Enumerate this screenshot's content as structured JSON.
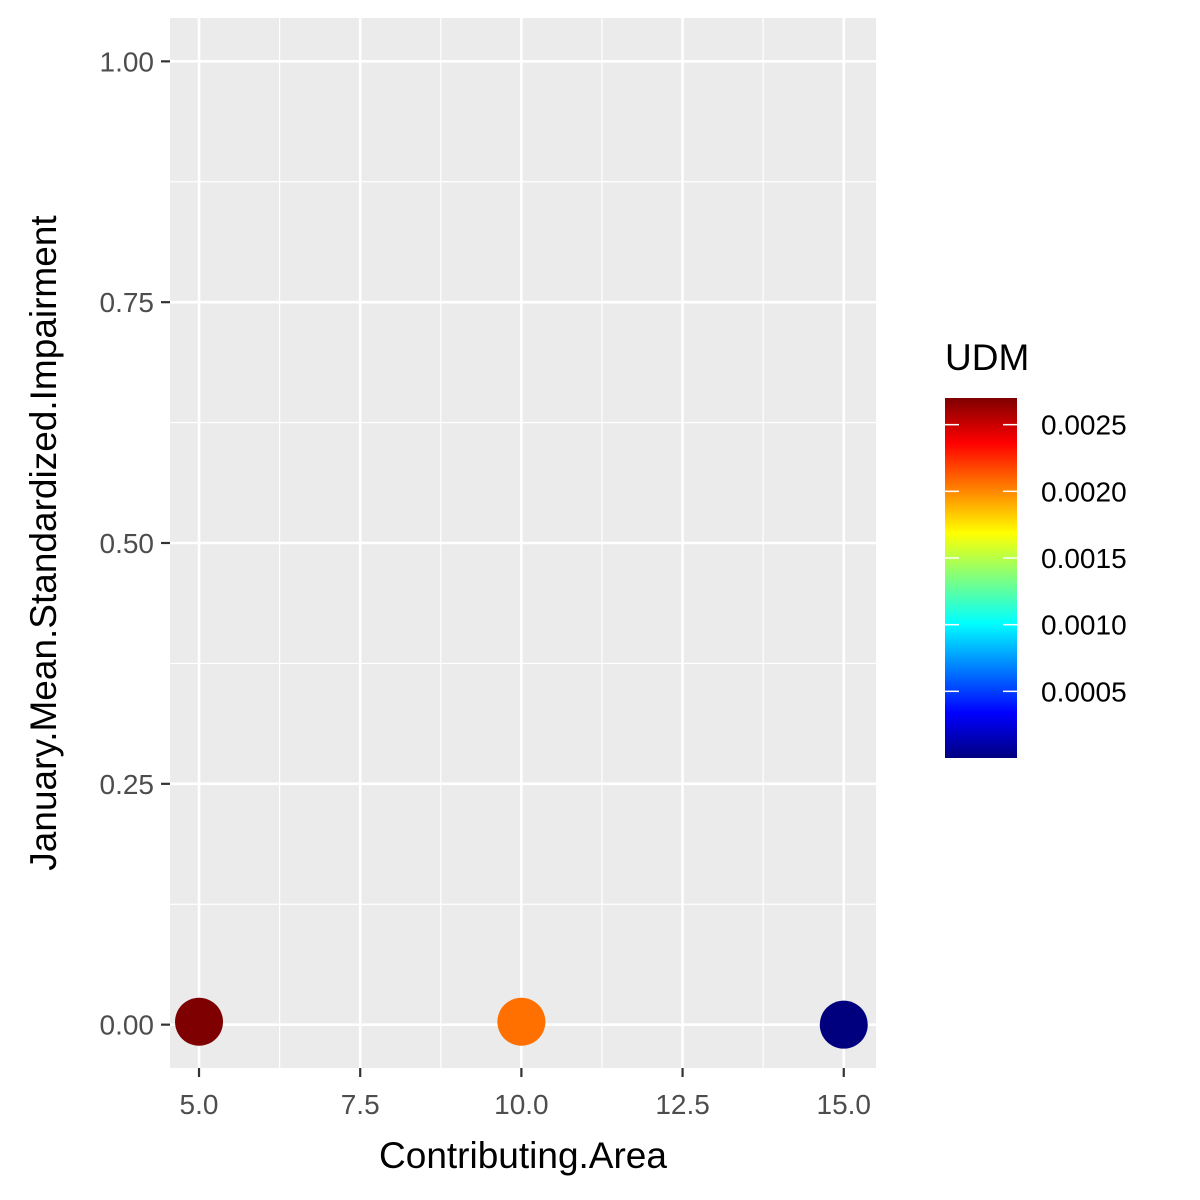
{
  "chart_data": {
    "type": "scatter",
    "xlabel": "Contributing.Area",
    "ylabel": "January.Mean.Standardized.Impairment",
    "xlim": [
      4.55,
      15.5
    ],
    "ylim": [
      -0.045,
      1.045
    ],
    "x_ticks": [
      5.0,
      7.5,
      10.0,
      12.5,
      15.0
    ],
    "x_tick_labels": [
      "5.0",
      "7.5",
      "10.0",
      "12.5",
      "15.0"
    ],
    "y_ticks": [
      0.0,
      0.25,
      0.5,
      0.75,
      1.0
    ],
    "y_tick_labels": [
      "0.00",
      "0.25",
      "0.50",
      "0.75",
      "1.00"
    ],
    "grid": true,
    "panel_background": "#ebebeb",
    "points": [
      {
        "x": 5.0,
        "y": 0.003,
        "udm": 0.0027,
        "color": "#7f0000"
      },
      {
        "x": 10.0,
        "y": 0.003,
        "udm": 0.00205,
        "color": "#ff7000"
      },
      {
        "x": 15.0,
        "y": 0.0,
        "udm": 0.0,
        "color": "#00007f"
      }
    ],
    "legend": {
      "title": "UDM",
      "placement": "right",
      "range": [
        0.0,
        0.0027
      ],
      "breaks": [
        0.0005,
        0.001,
        0.0015,
        0.002,
        0.0025
      ],
      "break_labels": [
        "0.0005",
        "0.0010",
        "0.0015",
        "0.0020",
        "0.0025"
      ],
      "colormap": [
        "#00007f",
        "#0000ff",
        "#007fff",
        "#00ffff",
        "#7fff7f",
        "#ffff00",
        "#ff7f00",
        "#ff0000",
        "#7f0000"
      ]
    }
  }
}
